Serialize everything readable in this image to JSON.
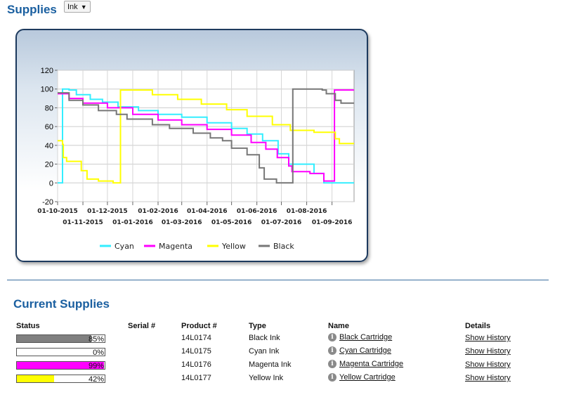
{
  "header": {
    "title": "Supplies",
    "select_value": "Ink"
  },
  "chart_data": {
    "type": "line",
    "x_labels_top": [
      "01-10-2015",
      "01-12-2015",
      "01-02-2016",
      "01-04-2016",
      "01-06-2016",
      "01-08-2016"
    ],
    "x_labels_bottom": [
      "01-11-2015",
      "01-01-2016",
      "01-03-2016",
      "01-05-2016",
      "01-07-2016",
      "01-09-2016"
    ],
    "xlim": [
      "2015-10-01",
      "2016-09-28"
    ],
    "ylim": [
      -20,
      120
    ],
    "y_ticks": [
      "120",
      "100",
      "80",
      "60",
      "40",
      "20",
      "0",
      "-20"
    ],
    "grid": true,
    "legend_position": "bottom",
    "series": [
      {
        "name": "Cyan",
        "color": "#33eeff",
        "points": [
          [
            "2015-10-01",
            0
          ],
          [
            "2015-10-07",
            0
          ],
          [
            "2015-10-07",
            100
          ],
          [
            "2015-10-15",
            99
          ],
          [
            "2015-10-24",
            94
          ],
          [
            "2015-11-10",
            89
          ],
          [
            "2015-11-25",
            86
          ],
          [
            "2015-12-14",
            81
          ],
          [
            "2016-01-08",
            77
          ],
          [
            "2016-02-01",
            73
          ],
          [
            "2016-03-01",
            70
          ],
          [
            "2016-04-01",
            64
          ],
          [
            "2016-05-01",
            58
          ],
          [
            "2016-05-20",
            52
          ],
          [
            "2016-06-08",
            45
          ],
          [
            "2016-06-27",
            31
          ],
          [
            "2016-07-10",
            20
          ],
          [
            "2016-08-10",
            10
          ],
          [
            "2016-08-22",
            0
          ],
          [
            "2016-09-28",
            0
          ]
        ]
      },
      {
        "name": "Magenta",
        "color": "#ff00ff",
        "points": [
          [
            "2015-10-01",
            95
          ],
          [
            "2015-10-15",
            90
          ],
          [
            "2015-11-01",
            85
          ],
          [
            "2015-12-01",
            80
          ],
          [
            "2016-01-01",
            73
          ],
          [
            "2016-02-01",
            67
          ],
          [
            "2016-03-01",
            62
          ],
          [
            "2016-04-01",
            57
          ],
          [
            "2016-05-01",
            51
          ],
          [
            "2016-05-25",
            43
          ],
          [
            "2016-06-12",
            36
          ],
          [
            "2016-06-26",
            27
          ],
          [
            "2016-07-10",
            18
          ],
          [
            "2016-07-14",
            12
          ],
          [
            "2016-08-05",
            10
          ],
          [
            "2016-08-22",
            2
          ],
          [
            "2016-09-04",
            2
          ],
          [
            "2016-09-04",
            99
          ],
          [
            "2016-09-28",
            99
          ]
        ]
      },
      {
        "name": "Yellow",
        "color": "#ffff00",
        "points": [
          [
            "2015-10-01",
            45
          ],
          [
            "2015-10-07",
            41
          ],
          [
            "2015-10-08",
            27
          ],
          [
            "2015-10-12",
            23
          ],
          [
            "2015-10-30",
            13
          ],
          [
            "2015-11-06",
            4
          ],
          [
            "2015-11-20",
            2
          ],
          [
            "2015-12-08",
            0
          ],
          [
            "2015-12-17",
            0
          ],
          [
            "2015-12-17",
            99
          ],
          [
            "2016-01-25",
            94
          ],
          [
            "2016-02-25",
            89
          ],
          [
            "2016-03-25",
            84
          ],
          [
            "2016-04-25",
            78
          ],
          [
            "2016-05-20",
            71
          ],
          [
            "2016-06-20",
            62
          ],
          [
            "2016-07-12",
            56
          ],
          [
            "2016-08-10",
            54
          ],
          [
            "2016-09-05",
            47
          ],
          [
            "2016-09-10",
            42
          ],
          [
            "2016-09-28",
            42
          ]
        ]
      },
      {
        "name": "Black",
        "color": "#777777",
        "points": [
          [
            "2015-10-01",
            96
          ],
          [
            "2015-10-15",
            88
          ],
          [
            "2015-11-01",
            83
          ],
          [
            "2015-11-20",
            77
          ],
          [
            "2015-12-12",
            73
          ],
          [
            "2015-12-25",
            68
          ],
          [
            "2016-01-25",
            62
          ],
          [
            "2016-02-15",
            58
          ],
          [
            "2016-03-15",
            53
          ],
          [
            "2016-04-05",
            48
          ],
          [
            "2016-04-20",
            45
          ],
          [
            "2016-05-01",
            37
          ],
          [
            "2016-05-20",
            30
          ],
          [
            "2016-06-04",
            16
          ],
          [
            "2016-06-10",
            4
          ],
          [
            "2016-06-25",
            0
          ],
          [
            "2016-07-14",
            0
          ],
          [
            "2016-07-15",
            100
          ],
          [
            "2016-08-20",
            99
          ],
          [
            "2016-08-25",
            95
          ],
          [
            "2016-09-05",
            88
          ],
          [
            "2016-09-12",
            85
          ],
          [
            "2016-09-28",
            85
          ]
        ]
      }
    ]
  },
  "current": {
    "title": "Current Supplies",
    "headers": {
      "status": "Status",
      "serial": "Serial #",
      "product": "Product #",
      "type": "Type",
      "name": "Name",
      "details": "Details"
    },
    "rows": [
      {
        "level": 85,
        "pct": "85%",
        "color": "#808080",
        "serial": "",
        "product": "14L0174",
        "type": "Black Ink",
        "name": "Black Cartridge",
        "details": "Show History"
      },
      {
        "level": 0,
        "pct": "0%",
        "color": "#33eeff",
        "serial": "",
        "product": "14L0175",
        "type": "Cyan Ink",
        "name": "Cyan Cartridge",
        "details": "Show History"
      },
      {
        "level": 99,
        "pct": "99%",
        "color": "#ff00ff",
        "serial": "",
        "product": "14L0176",
        "type": "Magenta Ink",
        "name": "Magenta Cartridge",
        "details": "Show History"
      },
      {
        "level": 42,
        "pct": "42%",
        "color": "#ffff00",
        "serial": "",
        "product": "14L0177",
        "type": "Yellow Ink",
        "name": "Yellow Cartridge",
        "details": "Show History"
      }
    ]
  }
}
